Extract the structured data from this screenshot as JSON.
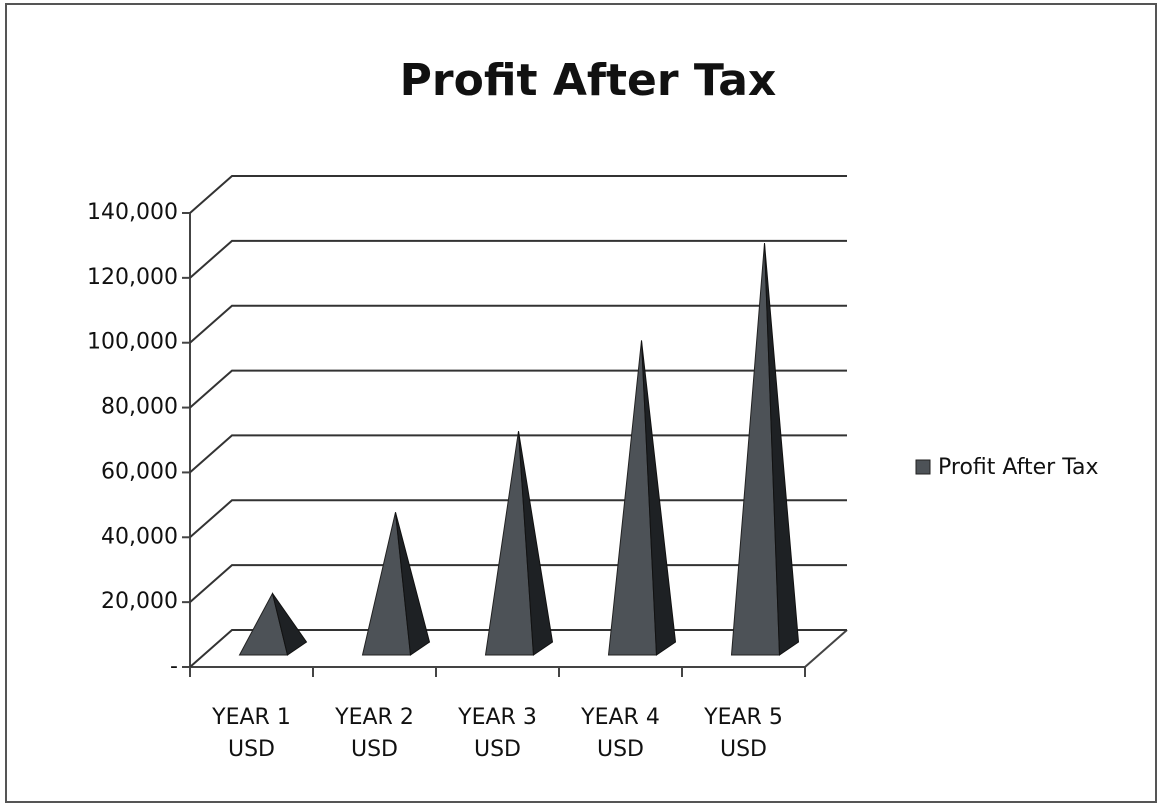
{
  "chart_data": {
    "type": "bar3d_pyramid",
    "title": "Profit After Tax",
    "categories": [
      "YEAR 1 USD",
      "YEAR 2 USD",
      "YEAR 3 USD",
      "YEAR 4 USD",
      "YEAR 5 USD"
    ],
    "series": [
      {
        "name": "Profit After Tax",
        "color": "#4d5257",
        "values": [
          17000,
          42000,
          67000,
          95000,
          125000
        ]
      }
    ],
    "ylim": [
      0,
      140000
    ],
    "yticks": [
      {
        "value": 0,
        "label": "-"
      },
      {
        "value": 20000,
        "label": "20,000"
      },
      {
        "value": 40000,
        "label": "40,000"
      },
      {
        "value": 60000,
        "label": "60,000"
      },
      {
        "value": 80000,
        "label": "80,000"
      },
      {
        "value": 100000,
        "label": "100,000"
      },
      {
        "value": 120000,
        "label": "120,000"
      },
      {
        "value": 140000,
        "label": "140,000"
      }
    ],
    "grid": true,
    "legend": "right"
  }
}
